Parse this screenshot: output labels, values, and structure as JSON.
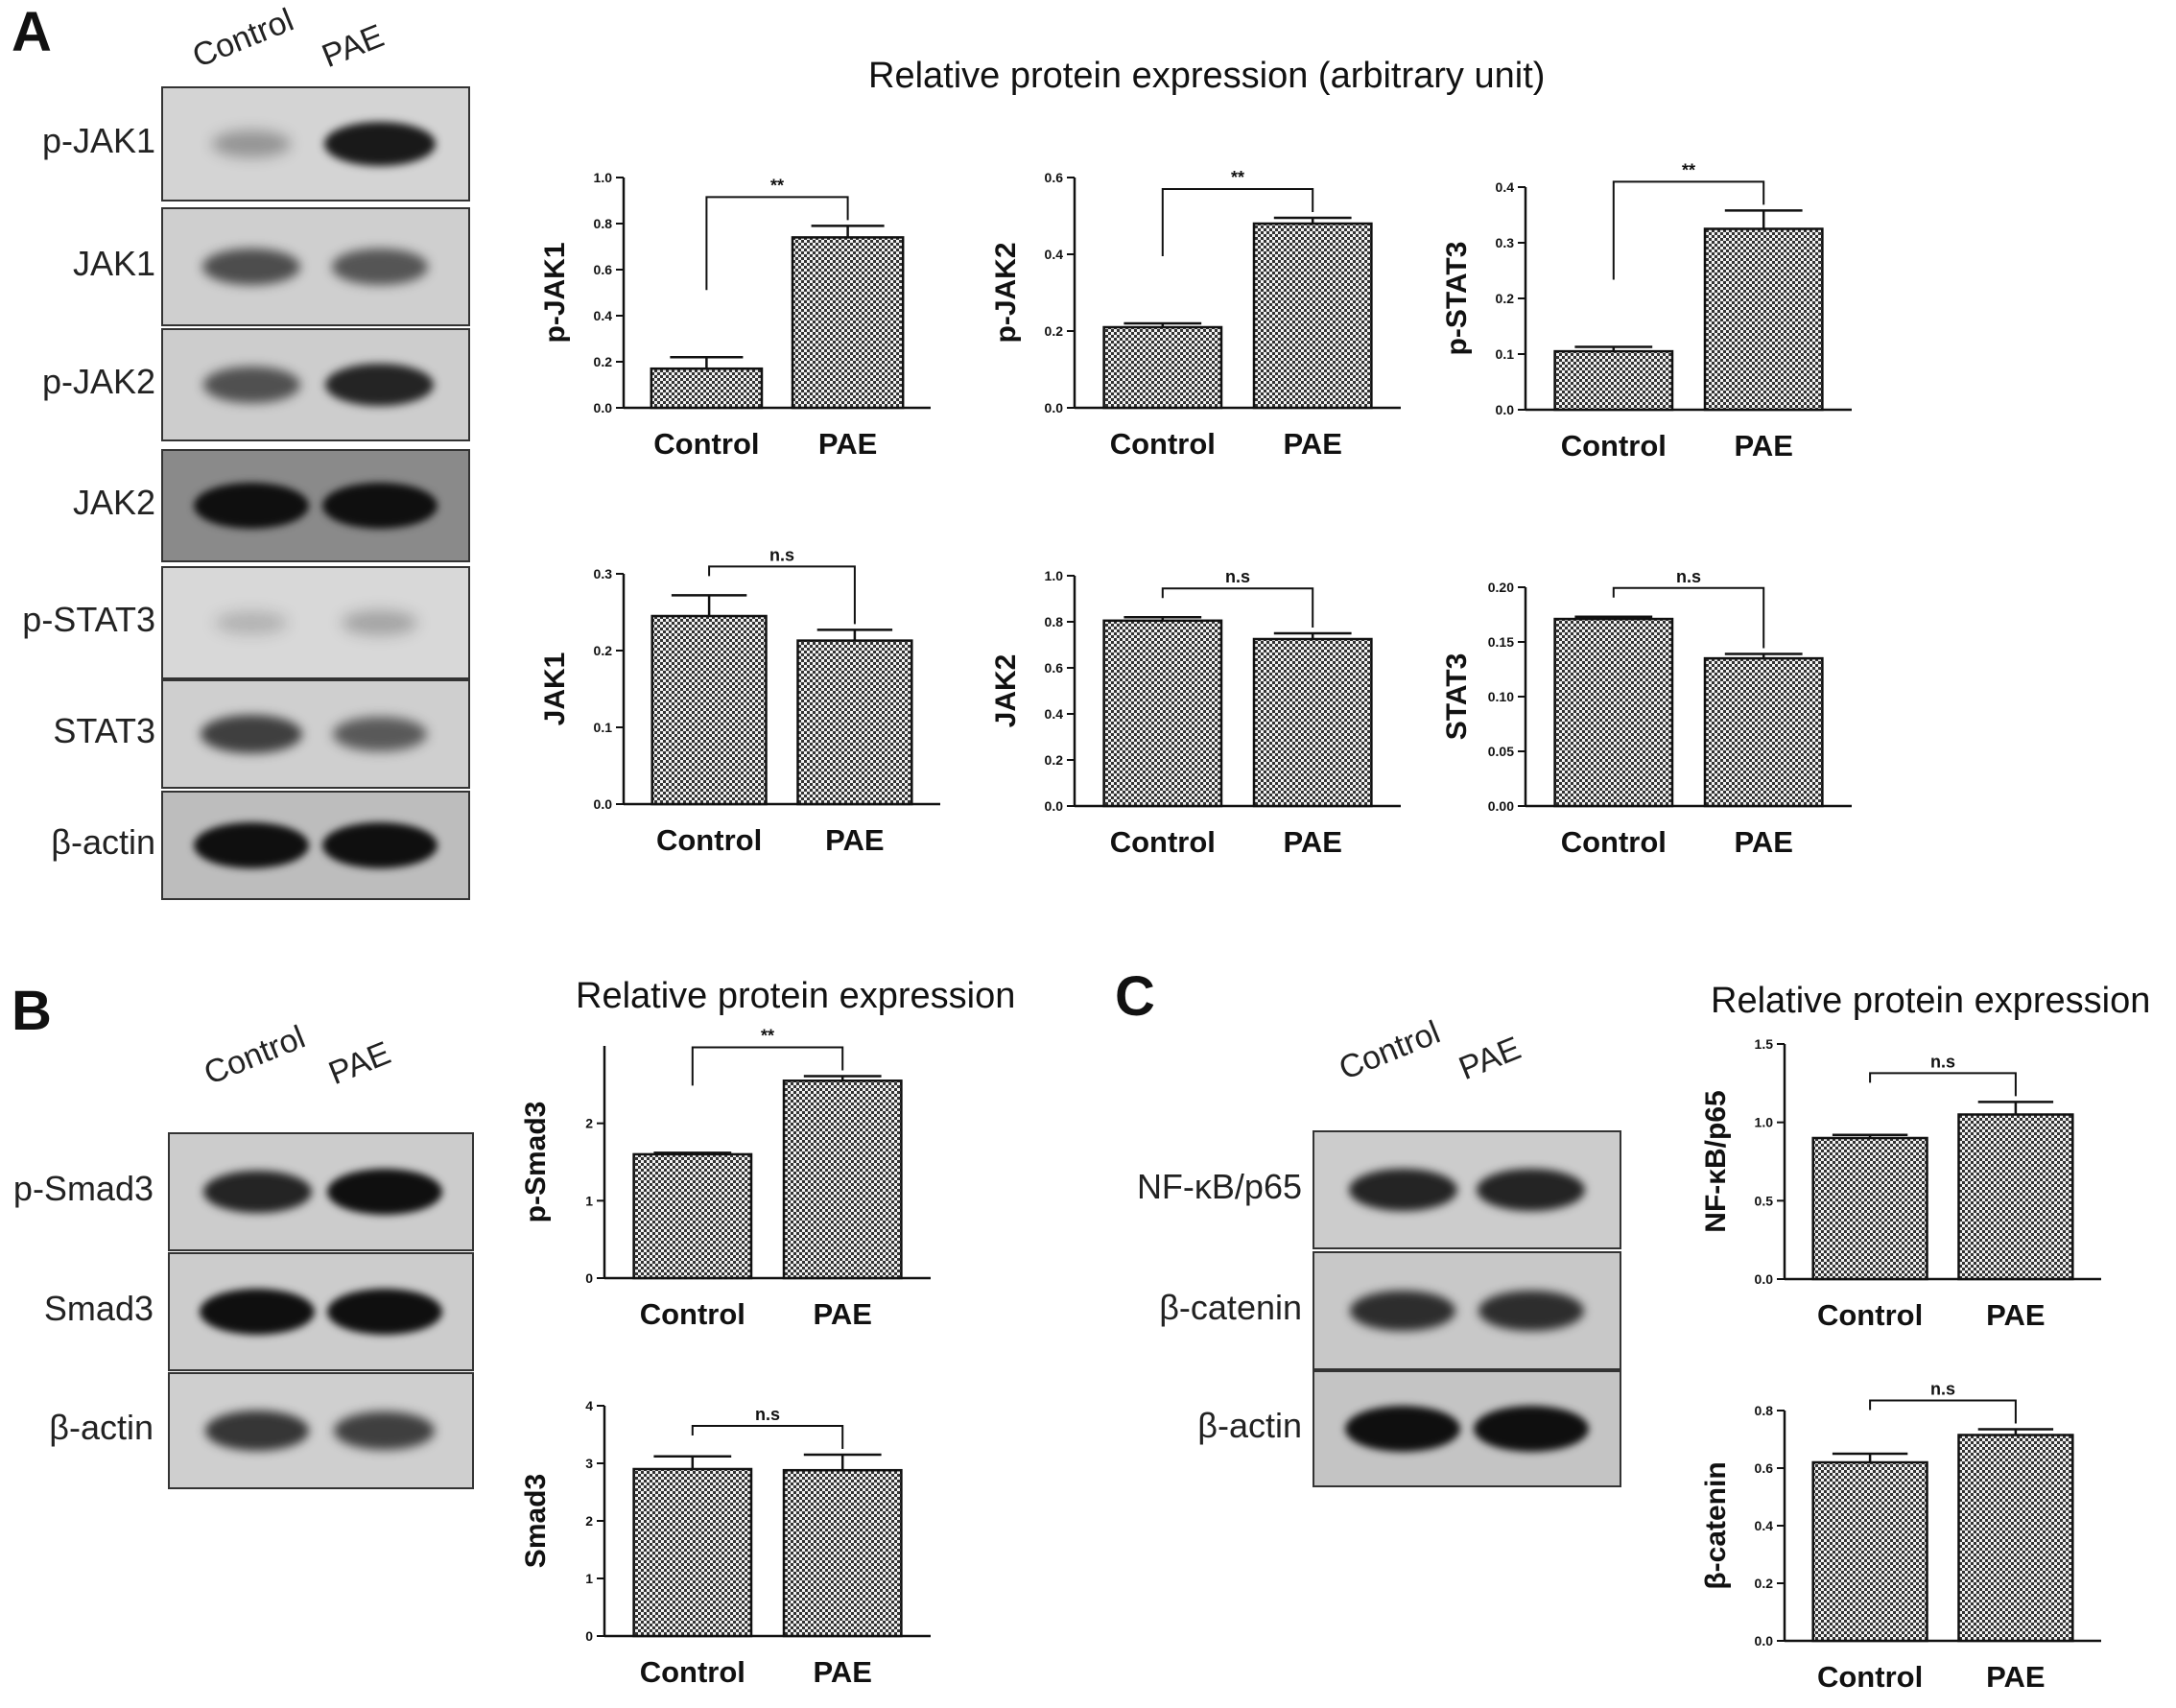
{
  "panels": {
    "A": {
      "letter": "A",
      "title": "Relative protein expression (arbitrary unit)",
      "lanes": [
        "Control",
        "PAE"
      ],
      "blots": [
        {
          "label": "p-JAK1",
          "bg": "#d4d4d4",
          "bands": [
            0.22,
            0.92
          ]
        },
        {
          "label": "JAK1",
          "bg": "#cfcfcf",
          "bands": [
            0.62,
            0.58
          ]
        },
        {
          "label": "p-JAK2",
          "bg": "#cdcdcd",
          "bands": [
            0.6,
            0.85
          ]
        },
        {
          "label": "JAK2",
          "bg": "#8a8a8a",
          "bands": [
            1.0,
            1.0
          ]
        },
        {
          "label": "p-STAT3",
          "bg": "#d8d8d8",
          "bands": [
            0.08,
            0.15
          ]
        },
        {
          "label": "STAT3",
          "bg": "#cfcfcf",
          "bands": [
            0.7,
            0.55
          ]
        },
        {
          "label": "β-actin",
          "bg": "#bdbdbd",
          "bands": [
            1.0,
            1.0
          ]
        }
      ]
    },
    "B": {
      "letter": "B",
      "title": "Relative protein expression",
      "lanes": [
        "Control",
        "PAE"
      ],
      "blots": [
        {
          "label": "p-Smad3",
          "bg": "#cccccc",
          "bands": [
            0.85,
            1.0
          ]
        },
        {
          "label": "Smad3",
          "bg": "#cccccc",
          "bands": [
            1.0,
            1.0
          ]
        },
        {
          "label": "β-actin",
          "bg": "#cfcfcf",
          "bands": [
            0.75,
            0.7
          ]
        }
      ]
    },
    "C": {
      "letter": "C",
      "title": "Relative protein expression",
      "lanes": [
        "Control",
        "PAE"
      ],
      "blots": [
        {
          "label": "NF-κB/p65",
          "bg": "#cccccc",
          "bands": [
            0.85,
            0.85
          ]
        },
        {
          "label": "β-catenin",
          "bg": "#c8c8c8",
          "bands": [
            0.8,
            0.8
          ]
        },
        {
          "label": "β-actin",
          "bg": "#c4c4c4",
          "bands": [
            1.0,
            1.0
          ]
        }
      ]
    }
  },
  "chart_data": [
    {
      "type": "bar",
      "ylabel": "p-JAK1",
      "categories": [
        "Control",
        "PAE"
      ],
      "values": [
        0.17,
        0.74
      ],
      "errors": [
        0.05,
        0.05
      ],
      "ylim": [
        0,
        1.0
      ],
      "ticks": [
        "0.0",
        "0.2",
        "0.4",
        "0.6",
        "0.8",
        "1.0"
      ],
      "significance": "**"
    },
    {
      "type": "bar",
      "ylabel": "p-JAK2",
      "categories": [
        "Control",
        "PAE"
      ],
      "values": [
        0.21,
        0.48
      ],
      "errors": [
        0.01,
        0.015
      ],
      "ylim": [
        0,
        0.6
      ],
      "ticks": [
        "0.0",
        "0.2",
        "0.4",
        "0.6"
      ],
      "significance": "**"
    },
    {
      "type": "bar",
      "ylabel": "p-STAT3",
      "categories": [
        "Control",
        "PAE"
      ],
      "values": [
        0.105,
        0.325
      ],
      "errors": [
        0.008,
        0.033
      ],
      "ylim": [
        0,
        0.4
      ],
      "ticks": [
        "0.0",
        "0.1",
        "0.2",
        "0.3",
        "0.4"
      ],
      "significance": "**"
    },
    {
      "type": "bar",
      "ylabel": "JAK1",
      "categories": [
        "Control",
        "PAE"
      ],
      "values": [
        0.245,
        0.213
      ],
      "errors": [
        0.027,
        0.014
      ],
      "ylim": [
        0,
        0.3
      ],
      "ticks": [
        "0.0",
        "0.1",
        "0.2",
        "0.3"
      ],
      "significance": "n.s"
    },
    {
      "type": "bar",
      "ylabel": "JAK2",
      "categories": [
        "Control",
        "PAE"
      ],
      "values": [
        0.805,
        0.725
      ],
      "errors": [
        0.015,
        0.025
      ],
      "ylim": [
        0,
        1.0
      ],
      "ticks": [
        "0.0",
        "0.2",
        "0.4",
        "0.6",
        "0.8",
        "1.0"
      ],
      "significance": "n.s"
    },
    {
      "type": "bar",
      "ylabel": "STAT3",
      "categories": [
        "Control",
        "PAE"
      ],
      "values": [
        0.171,
        0.135
      ],
      "errors": [
        0.002,
        0.004
      ],
      "ylim": [
        0,
        0.2
      ],
      "ticks": [
        "0.00",
        "0.05",
        "0.10",
        "0.15",
        "0.20"
      ],
      "significance": "n.s"
    },
    {
      "type": "bar",
      "ylabel": "p-Smad3",
      "categories": [
        "Control",
        "PAE"
      ],
      "values": [
        1.6,
        2.55
      ],
      "errors": [
        0.02,
        0.06
      ],
      "ylim": [
        0,
        3
      ],
      "ticks": [
        "0",
        "1",
        "2"
      ],
      "significance": "**"
    },
    {
      "type": "bar",
      "ylabel": "Smad3",
      "categories": [
        "Control",
        "PAE"
      ],
      "values": [
        2.9,
        2.88
      ],
      "errors": [
        0.22,
        0.27
      ],
      "ylim": [
        0,
        4
      ],
      "ticks": [
        "0",
        "1",
        "2",
        "3",
        "4"
      ],
      "significance": "n.s"
    },
    {
      "type": "bar",
      "ylabel": "NF-κB/p65",
      "categories": [
        "Control",
        "PAE"
      ],
      "values": [
        0.9,
        1.05
      ],
      "errors": [
        0.02,
        0.08
      ],
      "ylim": [
        0,
        1.5
      ],
      "ticks": [
        "0.0",
        "0.5",
        "1.0",
        "1.5"
      ],
      "significance": "n.s"
    },
    {
      "type": "bar",
      "ylabel": "β-catenin",
      "categories": [
        "Control",
        "PAE"
      ],
      "values": [
        0.62,
        0.715
      ],
      "errors": [
        0.03,
        0.02
      ],
      "ylim": [
        0,
        0.8
      ],
      "ticks": [
        "0.0",
        "0.2",
        "0.4",
        "0.6",
        "0.8"
      ],
      "significance": "n.s"
    }
  ]
}
